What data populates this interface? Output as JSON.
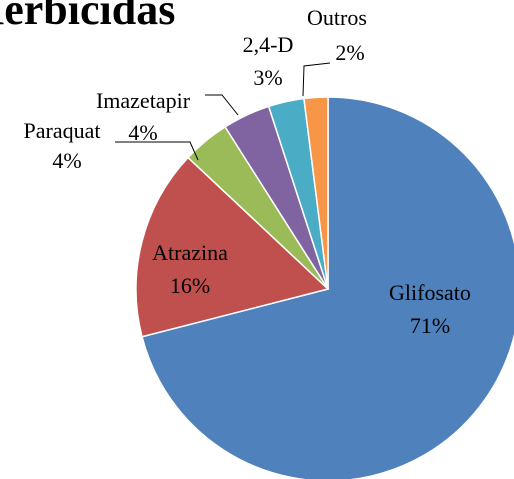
{
  "chart_data": {
    "type": "pie",
    "title": "Herbicidas",
    "categories": [
      "Glifosato",
      "Atrazina",
      "Paraquat",
      "Imazetapir",
      "2,4-D",
      "Outros"
    ],
    "values": [
      71,
      16,
      4,
      4,
      3,
      2
    ],
    "value_labels": [
      "71%",
      "16%",
      "4%",
      "4%",
      "3%",
      "2%"
    ],
    "colors": [
      "#4f81bd",
      "#c0504d",
      "#9bbb59",
      "#8064a2",
      "#4bacc6",
      "#f79646"
    ]
  }
}
